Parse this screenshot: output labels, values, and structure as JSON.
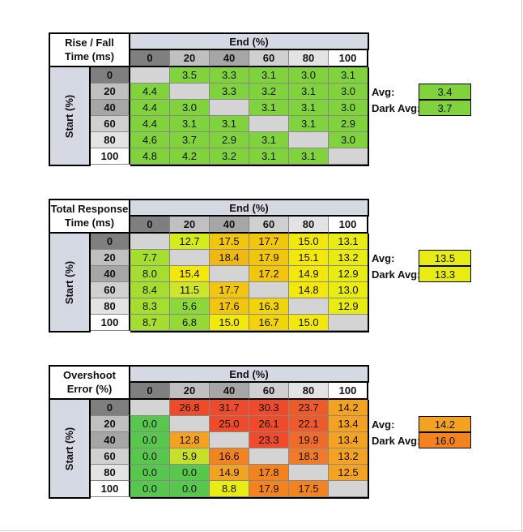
{
  "colors": {
    "empty": "#d4d4d4",
    "header_blue_gray": "#d5d9e3",
    "rise_green": "#7fd33c",
    "hdr_greys": [
      "#7f7f7f",
      "#c0c0c0",
      "#a6a6a6",
      "#d0d0d0",
      "#e3e3e3",
      "#ffffff"
    ]
  },
  "col_headers": [
    "0",
    "20",
    "40",
    "60",
    "80",
    "100"
  ],
  "row_headers": [
    "0",
    "20",
    "40",
    "60",
    "80",
    "100"
  ],
  "axis": {
    "end": "End (%)",
    "start": "Start (%)"
  },
  "stat_labels": {
    "avg": "Avg:",
    "dark_avg": "Dark Avg:"
  },
  "tables": [
    {
      "caption_lines": [
        "Rise / Fall",
        "Time (ms)"
      ],
      "cells": [
        [
          "",
          "3.5",
          "3.3",
          "3.1",
          "3.0",
          "3.1"
        ],
        [
          "4.4",
          "",
          "3.3",
          "3.2",
          "3.1",
          "3.0"
        ],
        [
          "4.4",
          "3.0",
          "",
          "3.1",
          "3.1",
          "3.0"
        ],
        [
          "4.4",
          "3.1",
          "3.1",
          "",
          "3.1",
          "2.9"
        ],
        [
          "4.6",
          "3.7",
          "2.9",
          "3.1",
          "",
          "3.0"
        ],
        [
          "4.8",
          "4.2",
          "3.2",
          "3.1",
          "3.1",
          ""
        ]
      ],
      "colors": [
        [
          "#d4d4d4",
          "#80d33d",
          "#80d33d",
          "#80d33d",
          "#80d33d",
          "#80d33d"
        ],
        [
          "#80d33d",
          "#d4d4d4",
          "#80d33d",
          "#80d33d",
          "#80d33d",
          "#80d33d"
        ],
        [
          "#80d33d",
          "#80d33d",
          "#d4d4d4",
          "#80d33d",
          "#80d33d",
          "#80d33d"
        ],
        [
          "#80d33d",
          "#80d33d",
          "#80d33d",
          "#d4d4d4",
          "#80d33d",
          "#80d33d"
        ],
        [
          "#80d33d",
          "#80d33d",
          "#80d33d",
          "#80d33d",
          "#d4d4d4",
          "#80d33d"
        ],
        [
          "#80d33d",
          "#80d33d",
          "#80d33d",
          "#80d33d",
          "#80d33d",
          "#d4d4d4"
        ]
      ],
      "avg": "3.4",
      "dark_avg": "3.7",
      "avg_color": "#80d33d",
      "dark_avg_color": "#80d33d"
    },
    {
      "caption_lines": [
        "Total Response",
        "Time (ms)"
      ],
      "cells": [
        [
          "",
          "12.7",
          "17.5",
          "17.7",
          "15.0",
          "13.1"
        ],
        [
          "7.7",
          "",
          "18.4",
          "17.9",
          "15.1",
          "13.2"
        ],
        [
          "8.0",
          "15.4",
          "",
          "17.2",
          "14.9",
          "12.9"
        ],
        [
          "8.4",
          "11.5",
          "17.7",
          "",
          "14.8",
          "13.0"
        ],
        [
          "8.3",
          "5.6",
          "17.6",
          "16.3",
          "",
          "12.9"
        ],
        [
          "8.7",
          "6.8",
          "15.0",
          "16.7",
          "15.0",
          ""
        ]
      ],
      "colors": [
        [
          "#d4d4d4",
          "#d6eb1c",
          "#f2c50f",
          "#f2c50f",
          "#f2e80c",
          "#e8ec13"
        ],
        [
          "#a6de2f",
          "#d4d4d4",
          "#f0b812",
          "#f2c50f",
          "#f2e80c",
          "#e8ec13"
        ],
        [
          "#a6de2f",
          "#f2e80c",
          "#d4d4d4",
          "#f2c50f",
          "#f2e80c",
          "#e8ec13"
        ],
        [
          "#a6de2f",
          "#cde52a",
          "#f2c50f",
          "#d4d4d4",
          "#f2e80c",
          "#e8ec13"
        ],
        [
          "#a6de2f",
          "#8cd73a",
          "#f2c50f",
          "#f2d40d",
          "#d4d4d4",
          "#e8ec13"
        ],
        [
          "#a6de2f",
          "#95d936",
          "#f2e80c",
          "#f2d40d",
          "#f2e80c",
          "#d4d4d4"
        ]
      ],
      "avg": "13.5",
      "dark_avg": "13.3",
      "avg_color": "#e8ec13",
      "dark_avg_color": "#e8ec13"
    },
    {
      "caption_lines": [
        "Overshoot",
        "Error (%)"
      ],
      "cells": [
        [
          "",
          "26.8",
          "31.7",
          "30.3",
          "23.7",
          "14.2"
        ],
        [
          "0.0",
          "",
          "25.0",
          "26.1",
          "22.1",
          "13.4"
        ],
        [
          "0.0",
          "12.8",
          "",
          "23.3",
          "19.9",
          "13.4"
        ],
        [
          "0.0",
          "5.9",
          "16.6",
          "",
          "18.3",
          "13.2"
        ],
        [
          "0.0",
          "0.0",
          "14.9",
          "17.8",
          "",
          "12.5"
        ],
        [
          "0.0",
          "0.0",
          "8.8",
          "17.9",
          "17.5",
          ""
        ]
      ],
      "colors": [
        [
          "#d4d4d4",
          "#ef4a2a",
          "#ef4a2a",
          "#ef4a2a",
          "#ef5a2a",
          "#f3a221"
        ],
        [
          "#57c84d",
          "#d4d4d4",
          "#ef4a2a",
          "#ef4a2a",
          "#ef5a2a",
          "#f3a221"
        ],
        [
          "#57c84d",
          "#f3a221",
          "#d4d4d4",
          "#ef4a2a",
          "#f06a28",
          "#f3a221"
        ],
        [
          "#57c84d",
          "#c7df2a",
          "#f2831f",
          "#d4d4d4",
          "#f07a27",
          "#f3a221"
        ],
        [
          "#57c84d",
          "#57c84d",
          "#f3a221",
          "#f2831f",
          "#d4d4d4",
          "#f3a221"
        ],
        [
          "#57c84d",
          "#57c84d",
          "#e8ec13",
          "#f2831f",
          "#f2831f",
          "#d4d4d4"
        ]
      ],
      "avg": "14.2",
      "dark_avg": "16.0",
      "avg_color": "#f3a221",
      "dark_avg_color": "#f2831f"
    }
  ]
}
